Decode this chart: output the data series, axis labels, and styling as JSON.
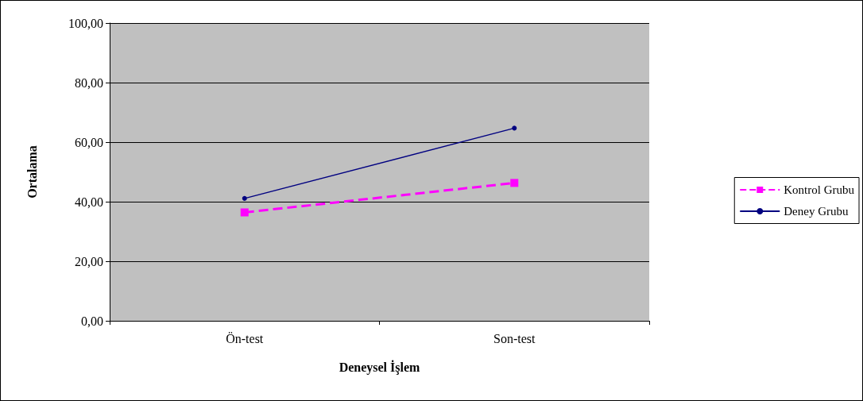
{
  "chart_data": {
    "type": "line",
    "xlabel": "Deneysel İşlem",
    "ylabel": "Ortalama",
    "categories": [
      "Ön-test",
      "Son-test"
    ],
    "series": [
      {
        "name": "Kontrol Grubu",
        "color": "#ff00ff",
        "values": [
          36.4,
          46.3
        ],
        "marker": "square",
        "line_style": "dashed"
      },
      {
        "name": "Deney Grubu",
        "color": "#000080",
        "values": [
          41.1,
          64.7
        ],
        "marker": "circle",
        "line_style": "solid"
      }
    ],
    "ylim": [
      0,
      100
    ],
    "yticks": [
      {
        "value": 0,
        "label": "0,00"
      },
      {
        "value": 20,
        "label": "20,00"
      },
      {
        "value": 40,
        "label": "40,00"
      },
      {
        "value": 60,
        "label": "60,00"
      },
      {
        "value": 80,
        "label": "80,00"
      },
      {
        "value": 100,
        "label": "100,00"
      }
    ],
    "grid": "y",
    "legend": "right"
  }
}
